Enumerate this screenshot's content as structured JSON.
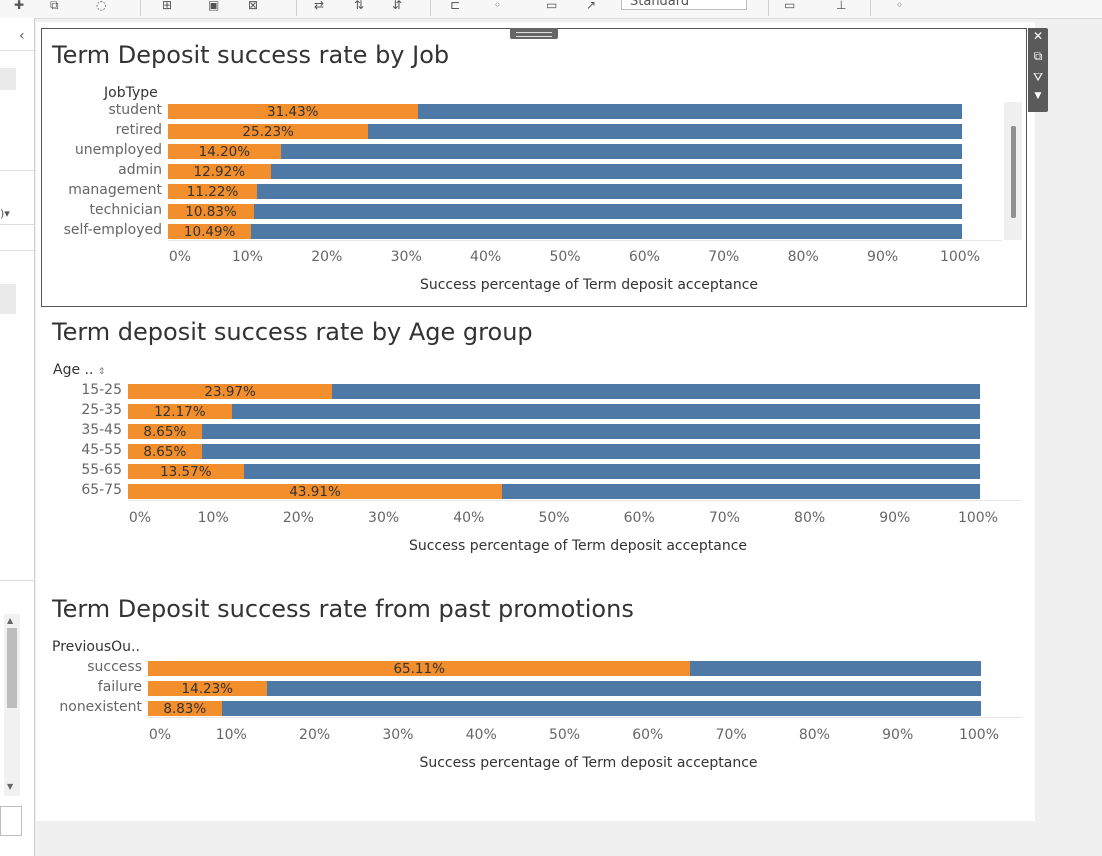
{
  "toolbar": {
    "view_select": "Standard"
  },
  "colors": {
    "success": "#f28e2b",
    "remainder": "#4e79a7"
  },
  "charts": [
    {
      "title": "Term Deposit success rate by Job",
      "row_header": "JobType",
      "axis_title": "Success percentage of Term deposit acceptance",
      "ticks": [
        "0%",
        "10%",
        "20%",
        "30%",
        "40%",
        "50%",
        "60%",
        "70%",
        "80%",
        "90%",
        "100%"
      ],
      "categories": [
        "student",
        "retired",
        "unemployed",
        "admin",
        "management",
        "technician",
        "self-employed"
      ],
      "values": [
        31.43,
        25.23,
        14.2,
        12.92,
        11.22,
        10.83,
        10.49
      ],
      "labels": [
        "31.43%",
        "25.23%",
        "14.20%",
        "12.92%",
        "11.22%",
        "10.83%",
        "10.49%"
      ]
    },
    {
      "title": "Term deposit success rate by Age group",
      "row_header": "Age ..",
      "axis_title": "Success percentage of Term deposit acceptance",
      "ticks": [
        "0%",
        "10%",
        "20%",
        "30%",
        "40%",
        "50%",
        "60%",
        "70%",
        "80%",
        "90%",
        "100%"
      ],
      "categories": [
        "15-25",
        "25-35",
        "35-45",
        "45-55",
        "55-65",
        "65-75"
      ],
      "values": [
        23.97,
        12.17,
        8.65,
        8.65,
        13.57,
        43.91
      ],
      "labels": [
        "23.97%",
        "12.17%",
        "8.65%",
        "8.65%",
        "13.57%",
        "43.91%"
      ]
    },
    {
      "title": "Term Deposit success rate from past promotions",
      "row_header": "PreviousOu..",
      "axis_title": "Success percentage of Term deposit acceptance",
      "ticks": [
        "0%",
        "10%",
        "20%",
        "30%",
        "40%",
        "50%",
        "60%",
        "70%",
        "80%",
        "90%",
        "100%"
      ],
      "categories": [
        "success",
        "failure",
        "nonexistent"
      ],
      "values": [
        65.11,
        14.23,
        8.83
      ],
      "labels": [
        "65.11%",
        "14.23%",
        "8.83%"
      ]
    }
  ],
  "chart_data": [
    {
      "type": "bar",
      "title": "Term Deposit success rate by Job",
      "categories": [
        "student",
        "retired",
        "unemployed",
        "admin",
        "management",
        "technician",
        "self-employed"
      ],
      "series": [
        {
          "name": "Success %",
          "values": [
            31.43,
            25.23,
            14.2,
            12.92,
            11.22,
            10.83,
            10.49
          ]
        }
      ],
      "xlabel": "Success percentage of Term deposit acceptance",
      "ylabel": "JobType",
      "xlim": [
        0,
        100
      ]
    },
    {
      "type": "bar",
      "title": "Term deposit success rate by Age group",
      "categories": [
        "15-25",
        "25-35",
        "35-45",
        "45-55",
        "55-65",
        "65-75"
      ],
      "series": [
        {
          "name": "Success %",
          "values": [
            23.97,
            12.17,
            8.65,
            8.65,
            13.57,
            43.91
          ]
        }
      ],
      "xlabel": "Success percentage of Term deposit acceptance",
      "ylabel": "Age ..",
      "xlim": [
        0,
        100
      ]
    },
    {
      "type": "bar",
      "title": "Term Deposit success rate from past promotions",
      "categories": [
        "success",
        "failure",
        "nonexistent"
      ],
      "series": [
        {
          "name": "Success %",
          "values": [
            65.11,
            14.23,
            8.83
          ]
        }
      ],
      "xlabel": "Success percentage of Term deposit acceptance",
      "ylabel": "PreviousOu..",
      "xlim": [
        0,
        100
      ]
    }
  ]
}
